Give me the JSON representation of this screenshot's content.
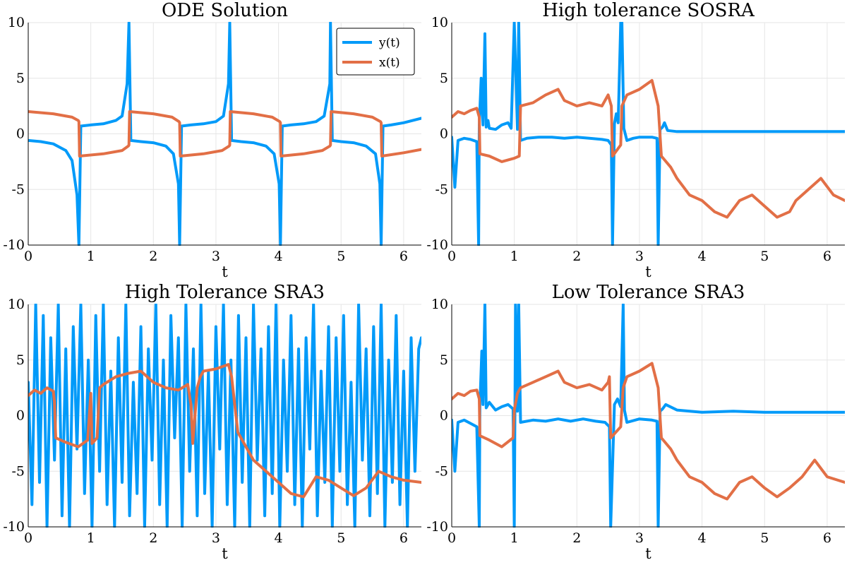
{
  "colors": {
    "y": "#009af9",
    "x": "#e26f46"
  },
  "chart_data": [
    {
      "type": "line",
      "title": "ODE Solution",
      "xlabel": "t",
      "ylabel": "",
      "xlim": [
        0,
        6.2832
      ],
      "ylim": [
        -10,
        10
      ],
      "xticks": [
        "0",
        "1",
        "2",
        "3",
        "4",
        "5",
        "6"
      ],
      "yticks": [
        "-10",
        "-5",
        "0",
        "5",
        "10"
      ],
      "legend": {
        "position": "top-right",
        "entries": [
          "y(t)",
          "x(t)"
        ]
      },
      "grid": true,
      "series": [
        {
          "name": "y(t)",
          "color": "#009af9",
          "description": "periodic, singular (tan-like) near t = 0.81, 2.42, 4.03, 5.64 going to -inf and t = 1.61, 3.22, 4.83 going to +inf",
          "x": [
            0,
            0.2,
            0.4,
            0.6,
            0.7,
            0.78,
            0.81,
            0.84,
            1.0,
            1.2,
            1.4,
            1.5,
            1.58,
            1.61,
            1.64,
            1.8,
            2.0,
            2.2,
            2.32,
            2.4,
            2.42,
            2.45,
            2.6,
            2.8,
            3.0,
            3.12,
            3.2,
            3.22,
            3.25,
            3.4,
            3.6,
            3.8,
            3.93,
            4.01,
            4.03,
            4.06,
            4.2,
            4.4,
            4.6,
            4.73,
            4.82,
            4.83,
            4.86,
            5.0,
            5.2,
            5.4,
            5.55,
            5.62,
            5.64,
            5.67,
            5.8,
            6.0,
            6.2832
          ],
          "y": [
            -0.6,
            -0.7,
            -0.9,
            -1.5,
            -2.4,
            -5.5,
            -10,
            0.7,
            0.8,
            0.9,
            1.2,
            1.6,
            4.5,
            10,
            -0.6,
            -0.7,
            -0.8,
            -1.1,
            -1.8,
            -4.5,
            -10,
            0.7,
            0.8,
            0.9,
            1.1,
            1.6,
            4.5,
            10,
            -0.6,
            -0.7,
            -0.8,
            -1.1,
            -1.8,
            -4.5,
            -10,
            0.7,
            0.8,
            0.9,
            1.1,
            1.6,
            4.5,
            10,
            -0.6,
            -0.7,
            -0.8,
            -1.1,
            -1.8,
            -4.5,
            -10,
            0.7,
            0.8,
            1.0,
            1.4
          ]
        },
        {
          "name": "x(t)",
          "color": "#e26f46",
          "x": [
            0,
            0.4,
            0.7,
            0.8,
            0.81,
            0.82,
            1.2,
            1.5,
            1.6,
            1.61,
            1.62,
            2.0,
            2.3,
            2.41,
            2.42,
            2.43,
            2.8,
            3.1,
            3.21,
            3.22,
            3.23,
            3.6,
            3.9,
            4.02,
            4.03,
            4.04,
            4.4,
            4.7,
            4.82,
            4.83,
            4.84,
            5.2,
            5.5,
            5.63,
            5.64,
            5.65,
            6.0,
            6.2832
          ],
          "y": [
            2.0,
            1.8,
            1.5,
            1.2,
            1.1,
            -2.0,
            -1.8,
            -1.5,
            -1.1,
            -1.0,
            2.0,
            1.8,
            1.5,
            1.1,
            1.0,
            -2.0,
            -1.8,
            -1.5,
            -1.1,
            -1.0,
            2.0,
            1.8,
            1.5,
            1.1,
            1.0,
            -2.0,
            -1.8,
            -1.5,
            -1.1,
            -1.0,
            2.0,
            1.8,
            1.5,
            1.1,
            1.0,
            -2.0,
            -1.7,
            -1.4
          ]
        }
      ]
    },
    {
      "type": "line",
      "title": "High tolerance SOSRA",
      "xlabel": "t",
      "ylabel": "",
      "xlim": [
        0,
        6.2832
      ],
      "ylim": [
        -10,
        10
      ],
      "xticks": [
        "0",
        "1",
        "2",
        "3",
        "4",
        "5",
        "6"
      ],
      "yticks": [
        "-10",
        "-5",
        "0",
        "5",
        "10"
      ],
      "grid": true,
      "series": [
        {
          "name": "y(t)",
          "color": "#009af9",
          "x": [
            0,
            0.05,
            0.1,
            0.2,
            0.3,
            0.4,
            0.43,
            0.44,
            0.47,
            0.5,
            0.53,
            0.55,
            0.58,
            0.6,
            0.7,
            0.8,
            0.9,
            0.95,
            1.0,
            1.05,
            1.07,
            1.1,
            1.2,
            1.4,
            1.6,
            1.8,
            2.0,
            2.2,
            2.4,
            2.5,
            2.55,
            2.57,
            2.6,
            2.63,
            2.66,
            2.7,
            2.72,
            2.75,
            2.8,
            2.9,
            3.0,
            3.1,
            3.2,
            3.28,
            3.3,
            3.33,
            3.37,
            3.4,
            3.45,
            3.6,
            4.0,
            4.5,
            5.0,
            5.5,
            6.0,
            6.2832
          ],
          "y": [
            -0.3,
            -4.8,
            -0.6,
            -0.4,
            -0.5,
            -0.7,
            -10,
            0.8,
            5.0,
            0.8,
            9.0,
            0.6,
            1.2,
            0.5,
            0.4,
            0.8,
            1.0,
            0.5,
            10,
            0.4,
            10,
            -0.6,
            -0.4,
            -0.3,
            -0.3,
            -0.4,
            -0.3,
            -0.4,
            -0.5,
            -0.6,
            -1.0,
            -10,
            0.9,
            1.8,
            1.0,
            10,
            10,
            0.5,
            -0.6,
            -0.4,
            -0.3,
            -0.3,
            -0.3,
            -0.4,
            -10,
            0.4,
            0.6,
            1.0,
            0.3,
            0.2,
            0.2,
            0.2,
            0.2,
            0.2,
            0.2,
            0.2
          ]
        },
        {
          "name": "x(t)",
          "color": "#e26f46",
          "x": [
            0,
            0.1,
            0.2,
            0.3,
            0.4,
            0.44,
            0.45,
            0.6,
            0.8,
            1.0,
            1.08,
            1.1,
            1.3,
            1.5,
            1.7,
            1.8,
            2.0,
            2.2,
            2.4,
            2.5,
            2.55,
            2.57,
            2.7,
            2.72,
            2.8,
            3.0,
            3.2,
            3.3,
            3.35,
            3.5,
            3.6,
            3.8,
            4.0,
            4.2,
            4.4,
            4.6,
            4.8,
            5.0,
            5.2,
            5.4,
            5.5,
            5.7,
            5.9,
            6.1,
            6.2832
          ],
          "y": [
            1.5,
            2.0,
            1.8,
            2.1,
            2.3,
            1.5,
            -1.8,
            -2.0,
            -2.5,
            -2.2,
            -2.0,
            2.5,
            2.8,
            3.5,
            4.0,
            3.0,
            2.5,
            2.8,
            2.5,
            3.5,
            2.5,
            -2.0,
            -1.0,
            2.5,
            3.5,
            4.0,
            4.8,
            2.5,
            -2.0,
            -3.0,
            -4.0,
            -5.5,
            -6.0,
            -7.0,
            -7.5,
            -6.0,
            -5.5,
            -6.5,
            -7.5,
            -7.0,
            -6.0,
            -5.0,
            -4.0,
            -5.5,
            -6.0
          ]
        }
      ]
    },
    {
      "type": "line",
      "title": "High Tolerance SRA3",
      "xlabel": "t",
      "ylabel": "",
      "xlim": [
        0,
        6.2832
      ],
      "ylim": [
        -10,
        10
      ],
      "xticks": [
        "0",
        "1",
        "2",
        "3",
        "4",
        "5",
        "6"
      ],
      "yticks": [
        "-10",
        "-5",
        "0",
        "5",
        "10"
      ],
      "grid": true,
      "series": [
        {
          "name": "y(t)",
          "color": "#009af9",
          "description": "dense high-amplitude oscillation spanning roughly -10 to 10 over the whole interval",
          "x": [
            0,
            0.06,
            0.12,
            0.18,
            0.24,
            0.3,
            0.36,
            0.42,
            0.48,
            0.54,
            0.6,
            0.66,
            0.72,
            0.78,
            0.84,
            0.9,
            0.96,
            1.02,
            1.08,
            1.14,
            1.2,
            1.26,
            1.32,
            1.38,
            1.44,
            1.5,
            1.56,
            1.62,
            1.68,
            1.74,
            1.8,
            1.86,
            1.92,
            1.98,
            2.04,
            2.1,
            2.16,
            2.22,
            2.28,
            2.34,
            2.4,
            2.46,
            2.52,
            2.58,
            2.64,
            2.7,
            2.76,
            2.82,
            2.88,
            2.94,
            3.0,
            3.06,
            3.12,
            3.18,
            3.24,
            3.3,
            3.36,
            3.42,
            3.48,
            3.54,
            3.6,
            3.66,
            3.72,
            3.78,
            3.84,
            3.9,
            3.96,
            4.02,
            4.08,
            4.14,
            4.2,
            4.26,
            4.32,
            4.38,
            4.44,
            4.5,
            4.56,
            4.62,
            4.68,
            4.74,
            4.8,
            4.86,
            4.92,
            4.98,
            5.04,
            5.1,
            5.16,
            5.22,
            5.28,
            5.34,
            5.4,
            5.46,
            5.52,
            5.58,
            5.64,
            5.7,
            5.76,
            5.82,
            5.88,
            5.94,
            6.0,
            6.06,
            6.12,
            6.18,
            6.24,
            6.2832
          ],
          "y": [
            3,
            -8,
            10,
            -6,
            9,
            -10,
            7,
            -4,
            10,
            -9,
            6,
            -10,
            8,
            -3,
            10,
            -7,
            5,
            -10,
            9,
            -5,
            10,
            -8,
            4,
            -10,
            7,
            -6,
            10,
            -9,
            3,
            -7,
            8,
            -10,
            6,
            -4,
            10,
            -8,
            5,
            -10,
            9,
            -2,
            7,
            -10,
            10,
            -5,
            6,
            -9,
            10,
            -7,
            4,
            -10,
            8,
            -3,
            10,
            -8,
            5,
            -10,
            9,
            -6,
            7,
            -10,
            10,
            -4,
            6,
            -9,
            8,
            -7,
            10,
            -10,
            5,
            -5,
            9,
            -8,
            6,
            -10,
            7,
            -3,
            10,
            -9,
            4,
            -6,
            8,
            -10,
            7,
            -5,
            9,
            -8,
            3,
            -10,
            10,
            -4,
            6,
            -9,
            8,
            -7,
            10,
            -10,
            5,
            -6,
            9,
            -8,
            4,
            -10,
            7,
            -5,
            6,
            7
          ]
        },
        {
          "name": "x(t)",
          "color": "#e26f46",
          "x": [
            0,
            0.1,
            0.2,
            0.3,
            0.4,
            0.42,
            0.44,
            0.6,
            0.8,
            0.95,
            1.0,
            1.02,
            1.1,
            1.14,
            1.2,
            1.4,
            1.6,
            1.8,
            2.0,
            2.2,
            2.4,
            2.55,
            2.6,
            2.63,
            2.7,
            2.75,
            2.8,
            3.0,
            3.2,
            3.25,
            3.35,
            3.4,
            3.6,
            3.8,
            4.0,
            4.2,
            4.4,
            4.6,
            4.8,
            5.0,
            5.2,
            5.4,
            5.6,
            5.8,
            6.0,
            6.2832
          ],
          "y": [
            1.8,
            2.3,
            2.0,
            2.5,
            2.2,
            1.2,
            -2.0,
            -2.4,
            -2.8,
            -2.2,
            2.0,
            -2.5,
            -2.0,
            2.5,
            2.8,
            3.5,
            3.8,
            4.0,
            3.0,
            2.5,
            2.3,
            2.8,
            1.0,
            -2.5,
            2.5,
            3.5,
            4.0,
            4.2,
            4.6,
            3.5,
            -1.5,
            -2.0,
            -4.0,
            -5.0,
            -6.0,
            -7.0,
            -7.3,
            -5.5,
            -5.8,
            -6.5,
            -7.2,
            -6.5,
            -5.0,
            -5.5,
            -5.8,
            -6.0
          ]
        }
      ]
    },
    {
      "type": "line",
      "title": "Low Tolerance SRA3",
      "xlabel": "t",
      "ylabel": "",
      "xlim": [
        0,
        6.2832
      ],
      "ylim": [
        -10,
        10
      ],
      "xticks": [
        "0",
        "1",
        "2",
        "3",
        "4",
        "5",
        "6"
      ],
      "yticks": [
        "-10",
        "-5",
        "0",
        "5",
        "10"
      ],
      "grid": true,
      "series": [
        {
          "name": "y(t)",
          "color": "#009af9",
          "x": [
            0,
            0.05,
            0.1,
            0.2,
            0.3,
            0.4,
            0.44,
            0.45,
            0.48,
            0.5,
            0.53,
            0.55,
            0.6,
            0.7,
            0.8,
            0.9,
            0.98,
            1.0,
            1.02,
            1.05,
            1.07,
            1.1,
            1.3,
            1.5,
            1.7,
            1.9,
            2.1,
            2.3,
            2.45,
            2.52,
            2.54,
            2.6,
            2.65,
            2.7,
            2.74,
            2.76,
            2.8,
            3.0,
            3.2,
            3.28,
            3.3,
            3.33,
            3.37,
            3.42,
            3.6,
            4.0,
            4.5,
            5.0,
            5.5,
            6.0,
            6.2832
          ],
          "y": [
            -0.4,
            -5.0,
            -0.6,
            -0.4,
            -0.7,
            -1.0,
            -10,
            0.9,
            5.8,
            1.0,
            10,
            0.7,
            1.2,
            0.5,
            0.8,
            1.0,
            0.6,
            -10,
            10,
            0.4,
            10,
            -0.6,
            -0.4,
            -0.5,
            -0.3,
            -0.5,
            -0.3,
            -0.5,
            -0.6,
            -1.0,
            -10,
            1.0,
            1.5,
            0.8,
            10,
            0.5,
            -0.6,
            -0.3,
            -0.4,
            -0.5,
            -10,
            0.4,
            0.6,
            1.0,
            0.5,
            0.3,
            0.4,
            0.3,
            0.3,
            0.3,
            0.3
          ]
        },
        {
          "name": "x(t)",
          "color": "#e26f46",
          "x": [
            0,
            0.1,
            0.2,
            0.3,
            0.4,
            0.44,
            0.45,
            0.6,
            0.8,
            0.98,
            1.0,
            1.05,
            1.1,
            1.3,
            1.5,
            1.7,
            1.8,
            2.0,
            2.2,
            2.4,
            2.5,
            2.52,
            2.54,
            2.7,
            2.74,
            2.8,
            3.0,
            3.2,
            3.3,
            3.35,
            3.5,
            3.6,
            3.8,
            4.0,
            4.2,
            4.4,
            4.6,
            4.8,
            5.0,
            5.2,
            5.4,
            5.6,
            5.8,
            6.0,
            6.2832
          ],
          "y": [
            1.5,
            2.0,
            1.8,
            2.2,
            2.3,
            1.5,
            -1.8,
            -2.2,
            -2.8,
            -2.0,
            0.5,
            2.0,
            2.5,
            3.0,
            3.5,
            4.0,
            3.0,
            2.5,
            2.8,
            2.3,
            3.0,
            3.5,
            -2.0,
            -1.0,
            2.5,
            3.5,
            4.0,
            4.7,
            2.5,
            -2.0,
            -3.0,
            -4.0,
            -5.5,
            -6.0,
            -7.0,
            -7.5,
            -6.0,
            -5.5,
            -6.5,
            -7.3,
            -6.5,
            -5.5,
            -4.0,
            -5.5,
            -6.0
          ]
        }
      ]
    }
  ]
}
